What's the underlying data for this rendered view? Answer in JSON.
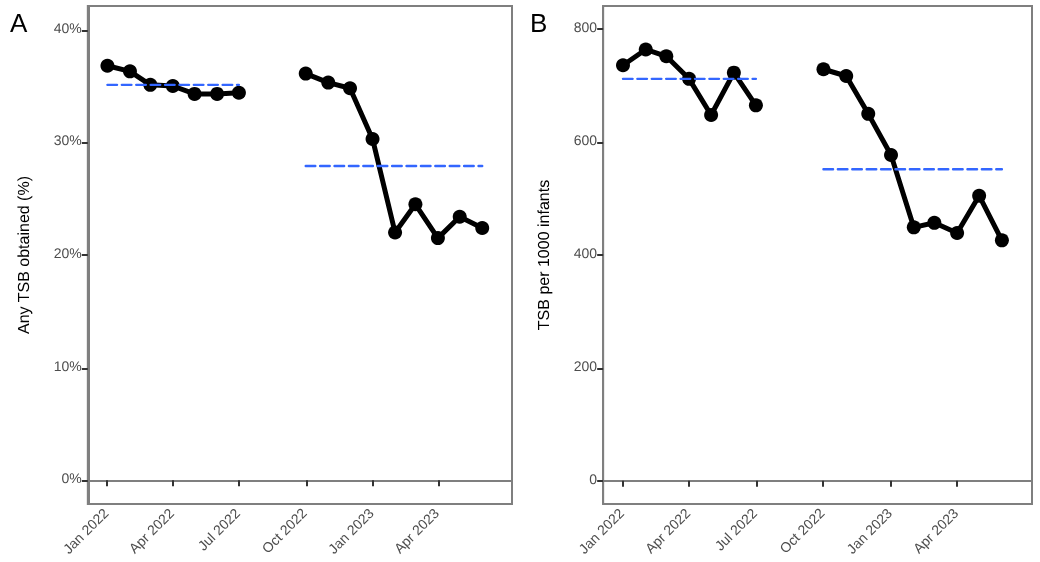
{
  "chart_data": [
    {
      "type": "line",
      "title": "A",
      "ylabel": "Any TSB obtained (%)",
      "marker": "circle",
      "line_style": "solid",
      "xlim": [
        "2021-12-05",
        "2023-07-12"
      ],
      "xticks": [
        {
          "value": "2022-01",
          "label": "Jan 2022"
        },
        {
          "value": "2022-04",
          "label": "Apr 2022"
        },
        {
          "value": "2022-07",
          "label": "Jul 2022"
        },
        {
          "value": "2022-10",
          "label": "Oct 2022"
        },
        {
          "value": "2023-01",
          "label": "Jan 2023"
        },
        {
          "value": "2023-04",
          "label": "Apr 2023"
        }
      ],
      "ylim": [
        -2.1,
        42.1
      ],
      "yticks": [
        {
          "value": 0,
          "label": "0%"
        },
        {
          "value": 10,
          "label": "10%"
        },
        {
          "value": 20,
          "label": "20%"
        },
        {
          "value": 30,
          "label": "30%"
        },
        {
          "value": 40,
          "label": "40%"
        }
      ],
      "series": [
        {
          "color": "#000000",
          "x": [
            "2022-01",
            "2022-02",
            "2022-03",
            "2022-04",
            "2022-05",
            "2022-06",
            "2022-07",
            "2022-08",
            "2022-09",
            "2022-10",
            "2022-11",
            "2022-12",
            "2023-01",
            "2023-02",
            "2023-03",
            "2023-04",
            "2023-05",
            "2023-06"
          ],
          "values": [
            36.8,
            36.3,
            35.1,
            35.0,
            34.3,
            34.3,
            34.4,
            null,
            null,
            36.1,
            35.3,
            34.8,
            30.3,
            22.0,
            24.5,
            21.5,
            23.4,
            22.4
          ]
        },
        {
          "type": "line",
          "color": "#3366ff",
          "line_style": "dashed",
          "marker": "none",
          "x": [
            "2022-01",
            "2022-07"
          ],
          "values": [
            35.1,
            35.1
          ]
        },
        {
          "type": "line",
          "color": "#3366ff",
          "line_style": "dashed",
          "marker": "none",
          "x": [
            "2022-10",
            "2023-06"
          ],
          "values": [
            27.9,
            27.9
          ]
        }
      ]
    },
    {
      "type": "line",
      "title": "B",
      "ylabel": "TSB per 1000 infants",
      "marker": "circle",
      "line_style": "solid",
      "xlim": [
        "2021-12-05",
        "2023-07-12"
      ],
      "xticks": [
        {
          "value": "2022-01",
          "label": "Jan 2022"
        },
        {
          "value": "2022-04",
          "label": "Apr 2022"
        },
        {
          "value": "2022-07",
          "label": "Jul 2022"
        },
        {
          "value": "2022-10",
          "label": "Oct 2022"
        },
        {
          "value": "2023-01",
          "label": "Jan 2023"
        },
        {
          "value": "2023-04",
          "label": "Apr 2023"
        }
      ],
      "ylim": [
        -41,
        841
      ],
      "yticks": [
        0,
        200,
        400,
        600,
        800
      ],
      "series": [
        {
          "color": "#000000",
          "x": [
            "2022-01",
            "2022-02",
            "2022-03",
            "2022-04",
            "2022-05",
            "2022-06",
            "2022-07",
            "2022-08",
            "2022-09",
            "2022-10",
            "2022-11",
            "2022-12",
            "2023-01",
            "2023-02",
            "2023-03",
            "2023-04",
            "2023-05",
            "2023-06"
          ],
          "values": [
            736,
            764,
            752,
            712,
            648,
            723,
            665,
            null,
            null,
            729,
            717,
            650,
            577,
            449,
            457,
            439,
            505,
            426
          ]
        },
        {
          "type": "line",
          "color": "#3366ff",
          "line_style": "dashed",
          "marker": "none",
          "x": [
            "2022-01",
            "2022-07"
          ],
          "values": [
            712,
            712
          ]
        },
        {
          "type": "line",
          "color": "#3366ff",
          "line_style": "dashed",
          "marker": "none",
          "x": [
            "2022-10",
            "2023-06"
          ],
          "values": [
            552,
            552
          ]
        }
      ]
    }
  ]
}
